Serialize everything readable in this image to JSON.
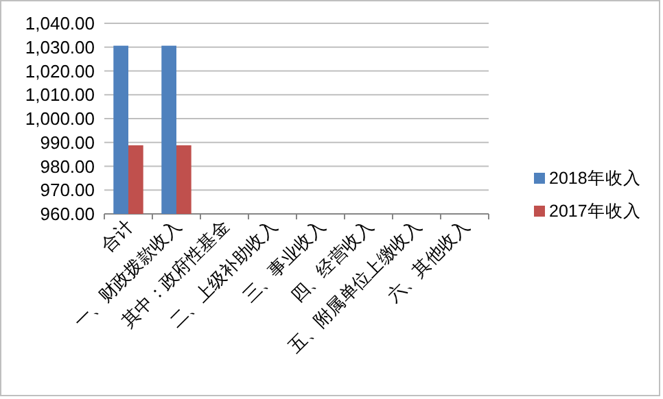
{
  "chart_data": {
    "type": "bar",
    "categories": [
      "合计",
      "一、财政拨款收入",
      "其中：政府性基金",
      "二、上级补助收入",
      "三、事业收入",
      "四、经营收入",
      "五、附属单位上缴收入",
      "六、其他收入"
    ],
    "series": [
      {
        "name": "2018年收入",
        "color": "#4f81bd",
        "values": [
          1030.6,
          1030.6,
          null,
          null,
          null,
          null,
          null,
          null
        ]
      },
      {
        "name": "2017年收入",
        "color": "#c0504d",
        "values": [
          988.8,
          988.8,
          null,
          null,
          null,
          null,
          null,
          null
        ]
      }
    ],
    "ylim": [
      960,
      1040
    ],
    "yticks": [
      {
        "value": 960,
        "label": "960.00"
      },
      {
        "value": 970,
        "label": "970.00"
      },
      {
        "value": 980,
        "label": "980.00"
      },
      {
        "value": 990,
        "label": "990.00"
      },
      {
        "value": 1000,
        "label": "1,000.00"
      },
      {
        "value": 1010,
        "label": "1,010.00"
      },
      {
        "value": 1020,
        "label": "1,020.00"
      },
      {
        "value": 1030,
        "label": "1,030.00"
      },
      {
        "value": 1040,
        "label": "1,040.00"
      }
    ],
    "grid": "y",
    "legend": "right"
  }
}
